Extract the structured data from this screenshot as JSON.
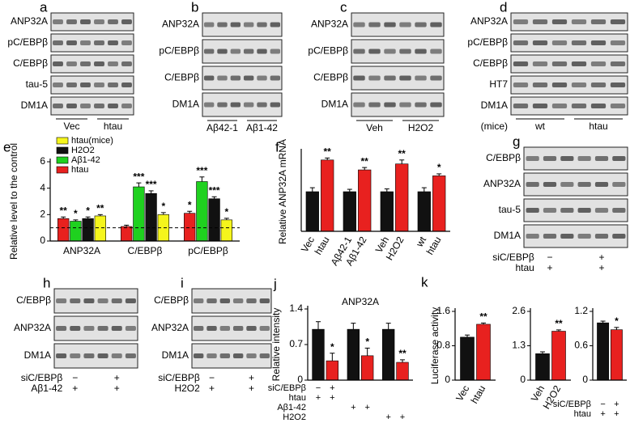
{
  "blots": [
    {
      "panel": "a",
      "rows": [
        "ANP32A",
        "pC/EBPβ",
        "C/EBPβ",
        "tau-5",
        "DM1A"
      ],
      "groups": [
        "Vec",
        "htau"
      ]
    },
    {
      "panel": "b",
      "rows": [
        "ANP32A",
        "pC/EBPβ",
        "C/EBPβ",
        "DM1A"
      ],
      "groups": [
        "Aβ42-1",
        "Aβ1-42"
      ]
    },
    {
      "panel": "c",
      "rows": [
        "ANP32A",
        "pC/EBPβ",
        "C/EBPβ",
        "DM1A"
      ],
      "groups": [
        "Veh",
        "H2O2"
      ]
    },
    {
      "panel": "d",
      "rows": [
        "ANP32A",
        "pC/EBPβ",
        "C/EBPβ",
        "HT7",
        "DM1A"
      ],
      "groups": [
        "wt",
        "htau"
      ],
      "note": "(mice)"
    },
    {
      "panel": "g",
      "rows": [
        "C/EBPβ",
        "ANP32A",
        "tau-5",
        "DM1A"
      ],
      "conditions": [
        {
          "label": "siC/EBPβ",
          "marks": [
            "−",
            "+"
          ]
        },
        {
          "label": "htau",
          "marks": [
            "+",
            "+"
          ]
        }
      ]
    },
    {
      "panel": "h",
      "rows": [
        "C/EBPβ",
        "ANP32A",
        "DM1A"
      ],
      "conditions": [
        {
          "label": "siC/EBPβ",
          "marks": [
            "−",
            "+"
          ]
        },
        {
          "label": "Aβ1-42",
          "marks": [
            "+",
            "+"
          ]
        }
      ]
    },
    {
      "panel": "i",
      "rows": [
        "C/EBPβ",
        "ANP32A",
        "DM1A"
      ],
      "conditions": [
        {
          "label": "siC/EBPβ",
          "marks": [
            "−",
            "+"
          ]
        },
        {
          "label": "H2O2",
          "marks": [
            "+",
            "+"
          ]
        }
      ]
    }
  ],
  "chart_data": [
    {
      "type": "bar",
      "panel": "e",
      "ylabel": "Relative level to the control",
      "categories": [
        "ANP32A",
        "C/EBPβ",
        "pC/EBPβ"
      ],
      "series": [
        {
          "name": "htau",
          "color": "#e8211f",
          "values": [
            1.7,
            1.1,
            2.1
          ],
          "errors": [
            0.12,
            0.1,
            0.15
          ],
          "stars": [
            "**",
            null,
            "*"
          ]
        },
        {
          "name": "Aβ1-42",
          "color": "#1fd11f",
          "values": [
            1.5,
            4.1,
            4.5
          ],
          "errors": [
            0.1,
            0.3,
            0.35
          ],
          "stars": [
            "*",
            "***",
            "***"
          ]
        },
        {
          "name": "H2O2",
          "color": "#111111",
          "values": [
            1.7,
            3.6,
            3.2
          ],
          "errors": [
            0.12,
            0.2,
            0.15
          ],
          "stars": [
            "*",
            "***",
            "***"
          ]
        },
        {
          "name": "htau(mice)",
          "color": "#f5f51c",
          "values": [
            1.9,
            2.0,
            1.6
          ],
          "errors": [
            0.1,
            0.15,
            0.12
          ],
          "stars": [
            "**",
            "*",
            "*"
          ]
        }
      ],
      "ylim": [
        0,
        6
      ],
      "yticks": [
        0,
        2,
        4,
        6
      ],
      "ref_line": 1
    },
    {
      "type": "bar",
      "panel": "f",
      "ylabel": "Relative ANP32A mRNA",
      "categories": [
        "Vec",
        "htau",
        "Aβ42-1",
        "Aβ1-42",
        "Veh",
        "H2O2",
        "wt",
        "htau"
      ],
      "values": [
        1,
        1.8,
        1,
        1.55,
        1,
        1.7,
        1,
        1.4
      ],
      "errors": [
        0.1,
        0.05,
        0.06,
        0.06,
        0.07,
        0.1,
        0.1,
        0.05
      ],
      "stars": [
        null,
        "**",
        null,
        "**",
        null,
        "**",
        null,
        "*"
      ],
      "colors": [
        "#111111",
        "#e8211f",
        "#111111",
        "#e8211f",
        "#111111",
        "#e8211f",
        "#111111",
        "#e8211f"
      ],
      "ylim": [
        0,
        2
      ]
    },
    {
      "type": "bar",
      "panel": "j",
      "title": "ANP32A",
      "ylabel": "Relative intensity",
      "values": [
        1,
        0.38,
        1,
        0.48,
        1,
        0.35
      ],
      "errors": [
        0.15,
        0.15,
        0.12,
        0.15,
        0.12,
        0.05
      ],
      "stars": [
        null,
        "*",
        null,
        "*",
        null,
        "**"
      ],
      "colors": [
        "#111111",
        "#e8211f",
        "#111111",
        "#e8211f",
        "#111111",
        "#e8211f"
      ],
      "conditions": [
        {
          "label": "siC/EBPβ",
          "marks": [
            "−",
            "+",
            null,
            null,
            null,
            null
          ]
        },
        {
          "label": "htau",
          "marks": [
            "+",
            "+",
            null,
            null,
            null,
            null
          ]
        },
        {
          "label": "Aβ1-42",
          "marks": [
            null,
            null,
            "+",
            "+",
            null,
            null
          ]
        },
        {
          "label": "H2O2",
          "marks": [
            null,
            null,
            null,
            null,
            "+",
            "+"
          ]
        }
      ],
      "ylim": [
        0,
        1.4
      ],
      "yticks": [
        0,
        0.7,
        1.4
      ]
    },
    {
      "type": "bar",
      "panel": "k",
      "ylabel": "Luciferase activity",
      "categories": [
        "Vec",
        "htau"
      ],
      "values": [
        1,
        1.3
      ],
      "errors": [
        0.05,
        0.03
      ],
      "stars": [
        null,
        "**"
      ],
      "colors": [
        "#111111",
        "#e8211f"
      ],
      "ylim": [
        0,
        1.6
      ],
      "yticks": [
        0,
        0.8,
        1.6
      ]
    },
    {
      "type": "bar",
      "categories": [
        "Veh",
        "H2O2"
      ],
      "values": [
        1,
        1.85
      ],
      "errors": [
        0.07,
        0.05
      ],
      "stars": [
        null,
        "**"
      ],
      "colors": [
        "#111111",
        "#e8211f"
      ],
      "ylim": [
        0,
        2.6
      ],
      "yticks": [
        0,
        1.3,
        2.6
      ]
    },
    {
      "type": "bar",
      "values": [
        1,
        0.88
      ],
      "errors": [
        0.03,
        0.04
      ],
      "stars": [
        null,
        "*"
      ],
      "colors": [
        "#111111",
        "#e8211f"
      ],
      "conditions": [
        {
          "label": "siC/EBPβ",
          "marks": [
            "−",
            "+"
          ]
        },
        {
          "label": "htau",
          "marks": [
            "+",
            "+"
          ]
        }
      ],
      "ylim": [
        0,
        1.2
      ],
      "yticks": [
        0,
        0.6,
        1.2
      ]
    }
  ]
}
